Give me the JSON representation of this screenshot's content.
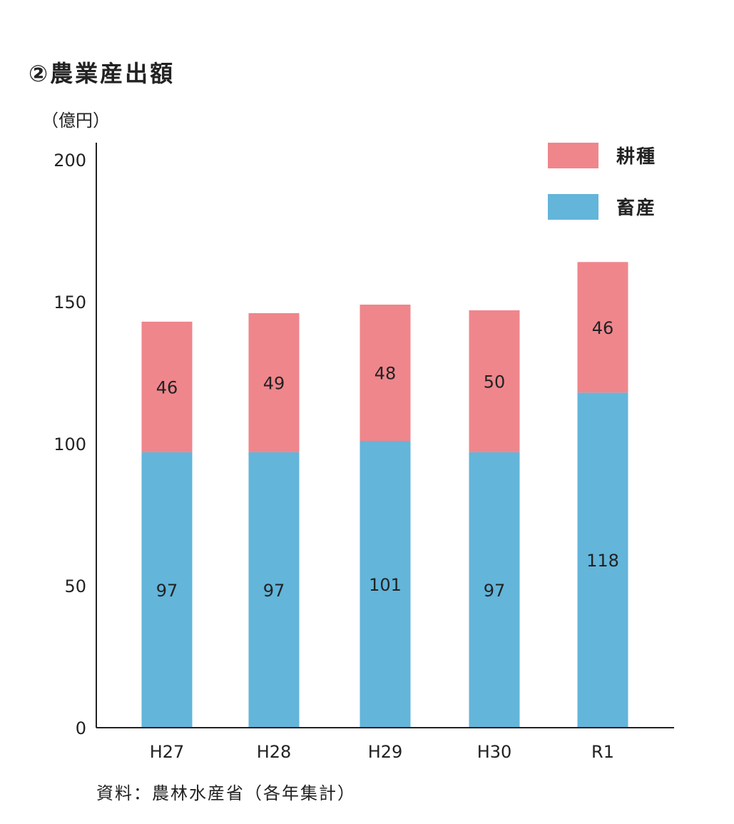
{
  "title": "②農業産出額",
  "source": "資料：農林水産省（各年集計）",
  "colors": {
    "crop": "#ef868c",
    "livestock": "#63b5da",
    "axis": "#222222",
    "text": "#222222"
  },
  "chart_data": {
    "type": "bar",
    "stacked": true,
    "title": "②農業産出額",
    "xlabel": "",
    "ylabel": "（億円）",
    "ylim": [
      0,
      200
    ],
    "yticks": [
      0,
      50,
      100,
      150,
      200
    ],
    "categories": [
      "H27",
      "H28",
      "H29",
      "H30",
      "R1"
    ],
    "series": [
      {
        "name": "畜産",
        "values": [
          97,
          97,
          101,
          97,
          118
        ],
        "color": "#63b5da"
      },
      {
        "name": "耕種",
        "values": [
          46,
          49,
          48,
          50,
          46
        ],
        "color": "#ef868c"
      }
    ],
    "legend": {
      "placement": "top-right",
      "order": [
        "耕種",
        "畜産"
      ]
    },
    "grid": false
  }
}
